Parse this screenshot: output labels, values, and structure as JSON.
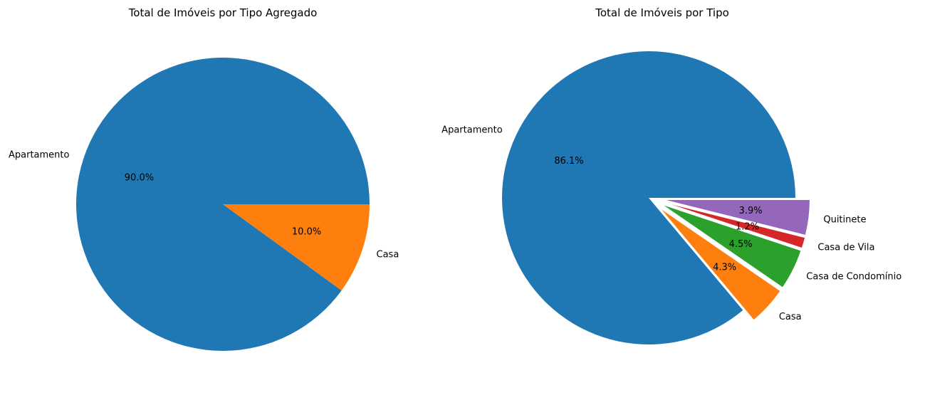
{
  "chart_data": [
    {
      "type": "pie",
      "title": "Total de Imóveis por Tipo Agregado",
      "autopct": true,
      "startangle_deg": 0,
      "direction": "counterclockwise",
      "slices": [
        {
          "label": "Apartamento",
          "value": 90.0,
          "pct_label": "90.0%",
          "color": "#1f77b4",
          "explode": 0
        },
        {
          "label": "Casa",
          "value": 10.0,
          "pct_label": "10.0%",
          "color": "#ff7f0e",
          "explode": 0
        }
      ]
    },
    {
      "type": "pie",
      "title": "Total de Imóveis por Tipo",
      "autopct": true,
      "startangle_deg": 0,
      "direction": "counterclockwise",
      "slices": [
        {
          "label": "Apartamento",
          "value": 86.1,
          "pct_label": "86.1%",
          "color": "#1f77b4",
          "explode": 0
        },
        {
          "label": "Casa",
          "value": 4.3,
          "pct_label": "4.3%",
          "color": "#ff7f0e",
          "explode": 0.1
        },
        {
          "label": "Casa de Condomínio",
          "value": 4.5,
          "pct_label": "4.5%",
          "color": "#2ca02c",
          "explode": 0.1
        },
        {
          "label": "Casa de Vila",
          "value": 1.2,
          "pct_label": "1.2%",
          "color": "#d62728",
          "explode": 0.1
        },
        {
          "label": "Quitinete",
          "value": 3.9,
          "pct_label": "3.9%",
          "color": "#9467bd",
          "explode": 0.1
        }
      ]
    }
  ]
}
